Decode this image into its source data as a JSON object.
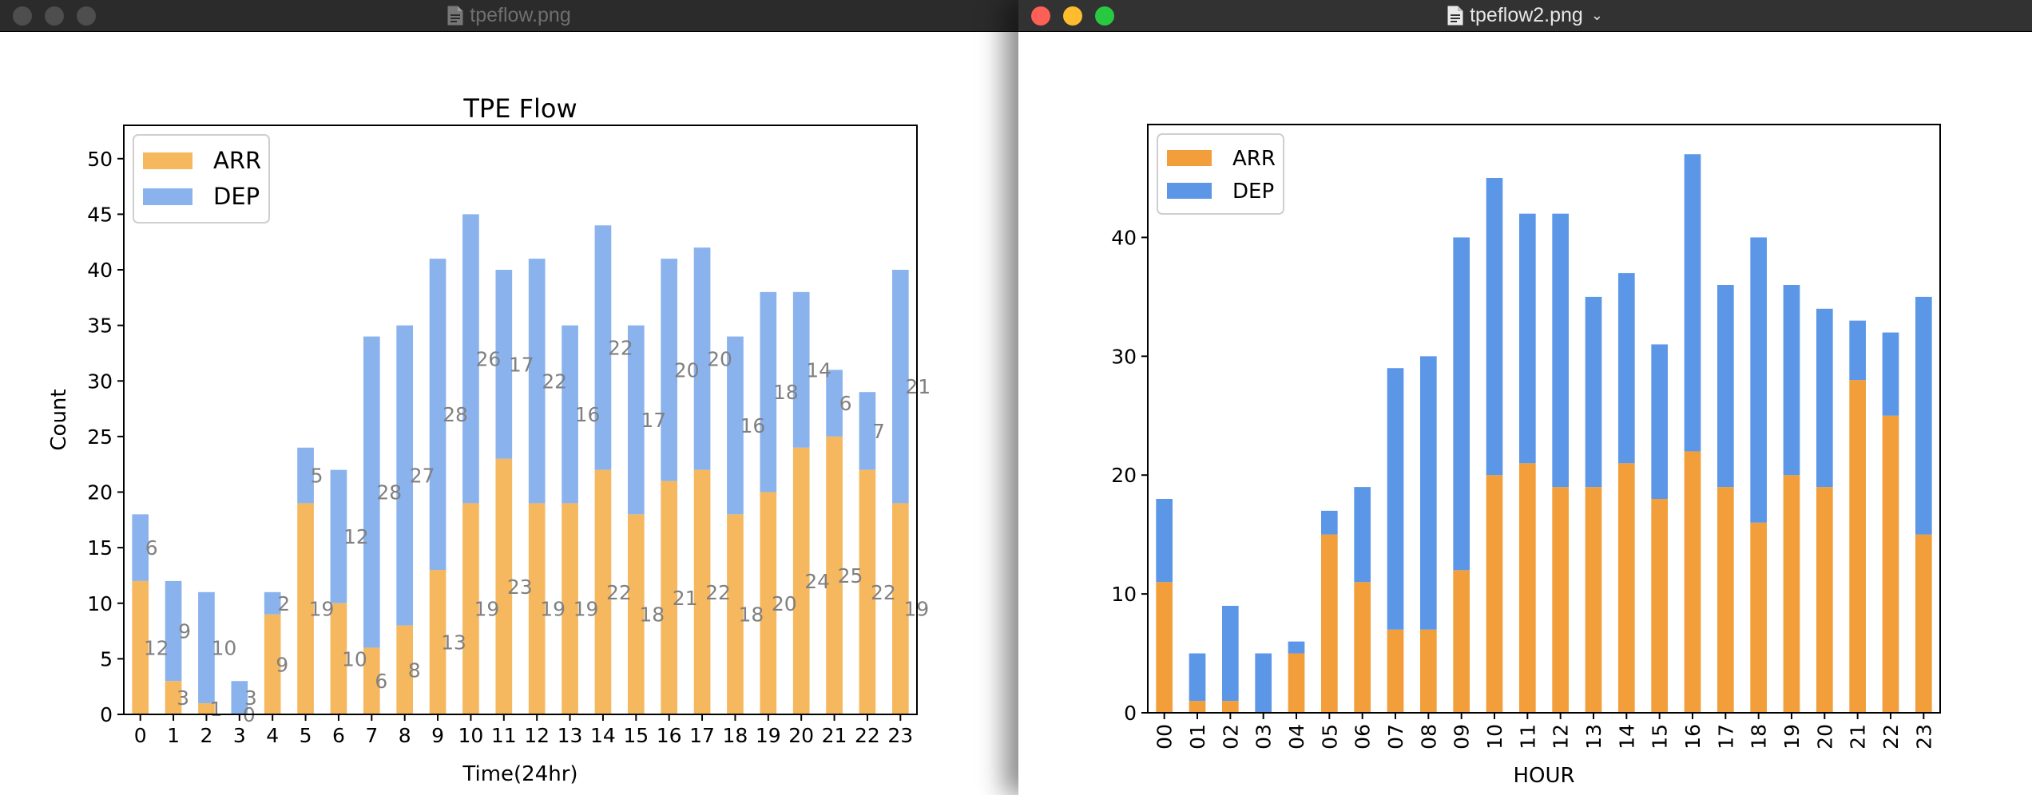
{
  "windows": [
    {
      "title": "tpeflow.png",
      "chart_data": {
        "type": "bar",
        "stacked": true,
        "title": "TPE Flow",
        "xlabel": "Time(24hr)",
        "ylabel": "Count",
        "categories": [
          "0",
          "1",
          "2",
          "3",
          "4",
          "5",
          "6",
          "7",
          "8",
          "9",
          "10",
          "11",
          "12",
          "13",
          "14",
          "15",
          "16",
          "17",
          "18",
          "19",
          "20",
          "21",
          "22",
          "23"
        ],
        "series": [
          {
            "name": "ARR",
            "color": "#f6b85f",
            "values": [
              12,
              3,
              1,
              0,
              9,
              19,
              10,
              6,
              8,
              13,
              19,
              23,
              19,
              19,
              22,
              18,
              21,
              22,
              18,
              20,
              24,
              25,
              22,
              19
            ]
          },
          {
            "name": "DEP",
            "color": "#8ab3ee",
            "values": [
              6,
              9,
              10,
              3,
              2,
              5,
              12,
              28,
              27,
              28,
              26,
              17,
              22,
              16,
              22,
              17,
              20,
              20,
              16,
              18,
              14,
              6,
              7,
              21
            ]
          }
        ],
        "data_labels": {
          "ARR": [
            "12",
            "3",
            "1",
            "0",
            "9",
            "19",
            "10",
            "6",
            "8",
            "13",
            "19",
            "23",
            "19",
            "19",
            "22",
            "18",
            "21",
            "22",
            "18",
            "20",
            "24",
            "25",
            "22",
            "19"
          ],
          "DEP": [
            "6",
            "9",
            "10",
            "3",
            "2",
            "5",
            "12",
            "28",
            "27",
            "28",
            "26",
            "17",
            "22",
            "16",
            "22",
            "17",
            "20",
            "20",
            "16",
            "18",
            "14",
            "6",
            "7",
            "21"
          ]
        },
        "ylim": [
          0,
          53
        ],
        "yticks": [
          "0",
          "5",
          "10",
          "15",
          "20",
          "25",
          "30",
          "35",
          "40",
          "45",
          "50"
        ],
        "legend": "top-left",
        "grid": false
      }
    },
    {
      "title": "tpeflow2.png",
      "chart_data": {
        "type": "bar",
        "stacked": true,
        "title": "",
        "xlabel": "HOUR",
        "ylabel": "",
        "categories": [
          "00",
          "01",
          "02",
          "03",
          "04",
          "05",
          "06",
          "07",
          "08",
          "09",
          "10",
          "11",
          "12",
          "13",
          "14",
          "15",
          "16",
          "17",
          "18",
          "19",
          "20",
          "21",
          "22",
          "23"
        ],
        "series": [
          {
            "name": "ARR",
            "color": "#f19e3b",
            "values": [
              11,
              1,
              1,
              0,
              5,
              15,
              11,
              7,
              7,
              12,
              20,
              21,
              19,
              19,
              21,
              18,
              22,
              19,
              16,
              20,
              19,
              28,
              25,
              15
            ]
          },
          {
            "name": "DEP",
            "color": "#5b97e6",
            "values": [
              7,
              4,
              8,
              5,
              1,
              2,
              8,
              22,
              23,
              28,
              25,
              21,
              23,
              16,
              16,
              13,
              25,
              17,
              24,
              16,
              15,
              5,
              7,
              20
            ]
          }
        ],
        "ylim": [
          0,
          49.5
        ],
        "yticks": [
          "0",
          "10",
          "20",
          "30",
          "40"
        ],
        "legend": "top-left",
        "grid": false
      }
    }
  ]
}
